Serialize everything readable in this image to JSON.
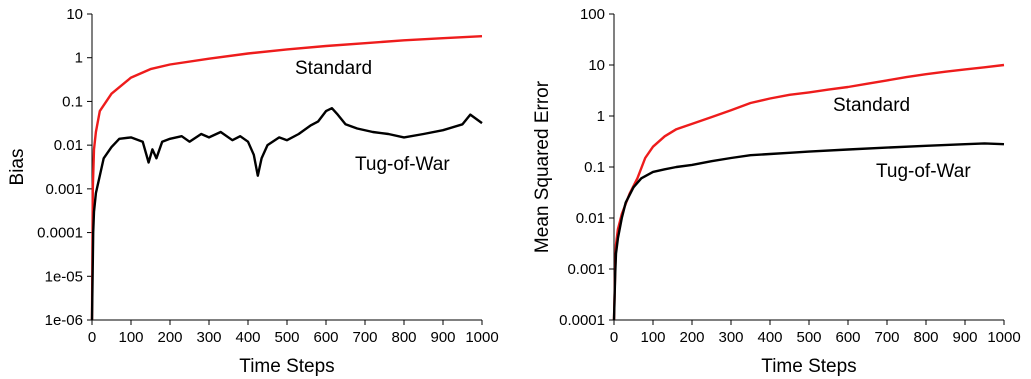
{
  "chart_data": [
    {
      "type": "line",
      "xlabel": "Time Steps",
      "ylabel": "Bias",
      "x_ticks": [
        "0",
        "100",
        "200",
        "300",
        "400",
        "500",
        "600",
        "700",
        "800",
        "900",
        "1000"
      ],
      "y_ticks": [
        "1e-06",
        "1e-05",
        "0.0001",
        "0.001",
        "0.01",
        "0.1",
        "1",
        "10"
      ],
      "xlim": [
        0,
        1000
      ],
      "ylim": [
        1e-06,
        10
      ],
      "yscale": "log",
      "grid": false,
      "annotations": [
        "Standard",
        "Tug-of-War"
      ],
      "series": [
        {
          "name": "Standard",
          "color": "#ee1c1c",
          "x": [
            0,
            2,
            5,
            10,
            20,
            50,
            100,
            150,
            200,
            300,
            400,
            500,
            600,
            700,
            800,
            900,
            1000
          ],
          "y": [
            1e-06,
            0.001,
            0.008,
            0.02,
            0.06,
            0.15,
            0.35,
            0.55,
            0.7,
            0.95,
            1.25,
            1.55,
            1.85,
            2.15,
            2.5,
            2.8,
            3.1
          ]
        },
        {
          "name": "Tug-of-War",
          "color": "#000000",
          "x": [
            0,
            3,
            5,
            10,
            20,
            30,
            50,
            70,
            100,
            130,
            145,
            155,
            165,
            180,
            200,
            230,
            250,
            280,
            300,
            330,
            360,
            380,
            400,
            415,
            425,
            435,
            450,
            480,
            500,
            530,
            560,
            580,
            600,
            615,
            630,
            650,
            680,
            720,
            760,
            800,
            850,
            900,
            950,
            970,
            1000
          ],
          "y": [
            1e-06,
            0.0001,
            0.0003,
            0.0008,
            0.002,
            0.005,
            0.009,
            0.014,
            0.015,
            0.012,
            0.004,
            0.008,
            0.005,
            0.012,
            0.014,
            0.016,
            0.012,
            0.018,
            0.015,
            0.02,
            0.013,
            0.016,
            0.012,
            0.006,
            0.002,
            0.005,
            0.01,
            0.015,
            0.013,
            0.018,
            0.028,
            0.035,
            0.06,
            0.07,
            0.05,
            0.03,
            0.024,
            0.02,
            0.018,
            0.015,
            0.018,
            0.022,
            0.03,
            0.05,
            0.032
          ]
        }
      ]
    },
    {
      "type": "line",
      "xlabel": "Time Steps",
      "ylabel": "Mean Squared Error",
      "x_ticks": [
        "0",
        "100",
        "200",
        "300",
        "400",
        "500",
        "600",
        "700",
        "800",
        "900",
        "1000"
      ],
      "y_ticks": [
        "0.0001",
        "0.001",
        "0.01",
        "0.1",
        "1",
        "10",
        "100"
      ],
      "xlim": [
        0,
        1000
      ],
      "ylim": [
        0.0001,
        100
      ],
      "yscale": "log",
      "grid": false,
      "annotations": [
        "Standard",
        "Tug-of-War"
      ],
      "series": [
        {
          "name": "Standard",
          "color": "#ee1c1c",
          "x": [
            0,
            3,
            5,
            10,
            20,
            40,
            60,
            80,
            100,
            130,
            160,
            200,
            250,
            300,
            350,
            400,
            450,
            500,
            550,
            600,
            650,
            700,
            750,
            800,
            850,
            900,
            950,
            1000
          ],
          "y": [
            0.0001,
            0.001,
            0.003,
            0.006,
            0.012,
            0.03,
            0.06,
            0.15,
            0.25,
            0.4,
            0.55,
            0.7,
            0.95,
            1.3,
            1.8,
            2.2,
            2.6,
            2.9,
            3.3,
            3.7,
            4.3,
            5.0,
            5.8,
            6.6,
            7.4,
            8.2,
            9.0,
            10.0
          ]
        },
        {
          "name": "Tug-of-War",
          "color": "#000000",
          "x": [
            0,
            3,
            5,
            10,
            20,
            30,
            50,
            70,
            100,
            130,
            160,
            200,
            250,
            300,
            350,
            400,
            450,
            500,
            600,
            700,
            800,
            900,
            950,
            1000
          ],
          "y": [
            0.0001,
            0.0008,
            0.002,
            0.004,
            0.01,
            0.02,
            0.04,
            0.06,
            0.08,
            0.09,
            0.1,
            0.11,
            0.13,
            0.15,
            0.17,
            0.18,
            0.19,
            0.2,
            0.22,
            0.24,
            0.26,
            0.28,
            0.29,
            0.28
          ]
        }
      ]
    }
  ]
}
